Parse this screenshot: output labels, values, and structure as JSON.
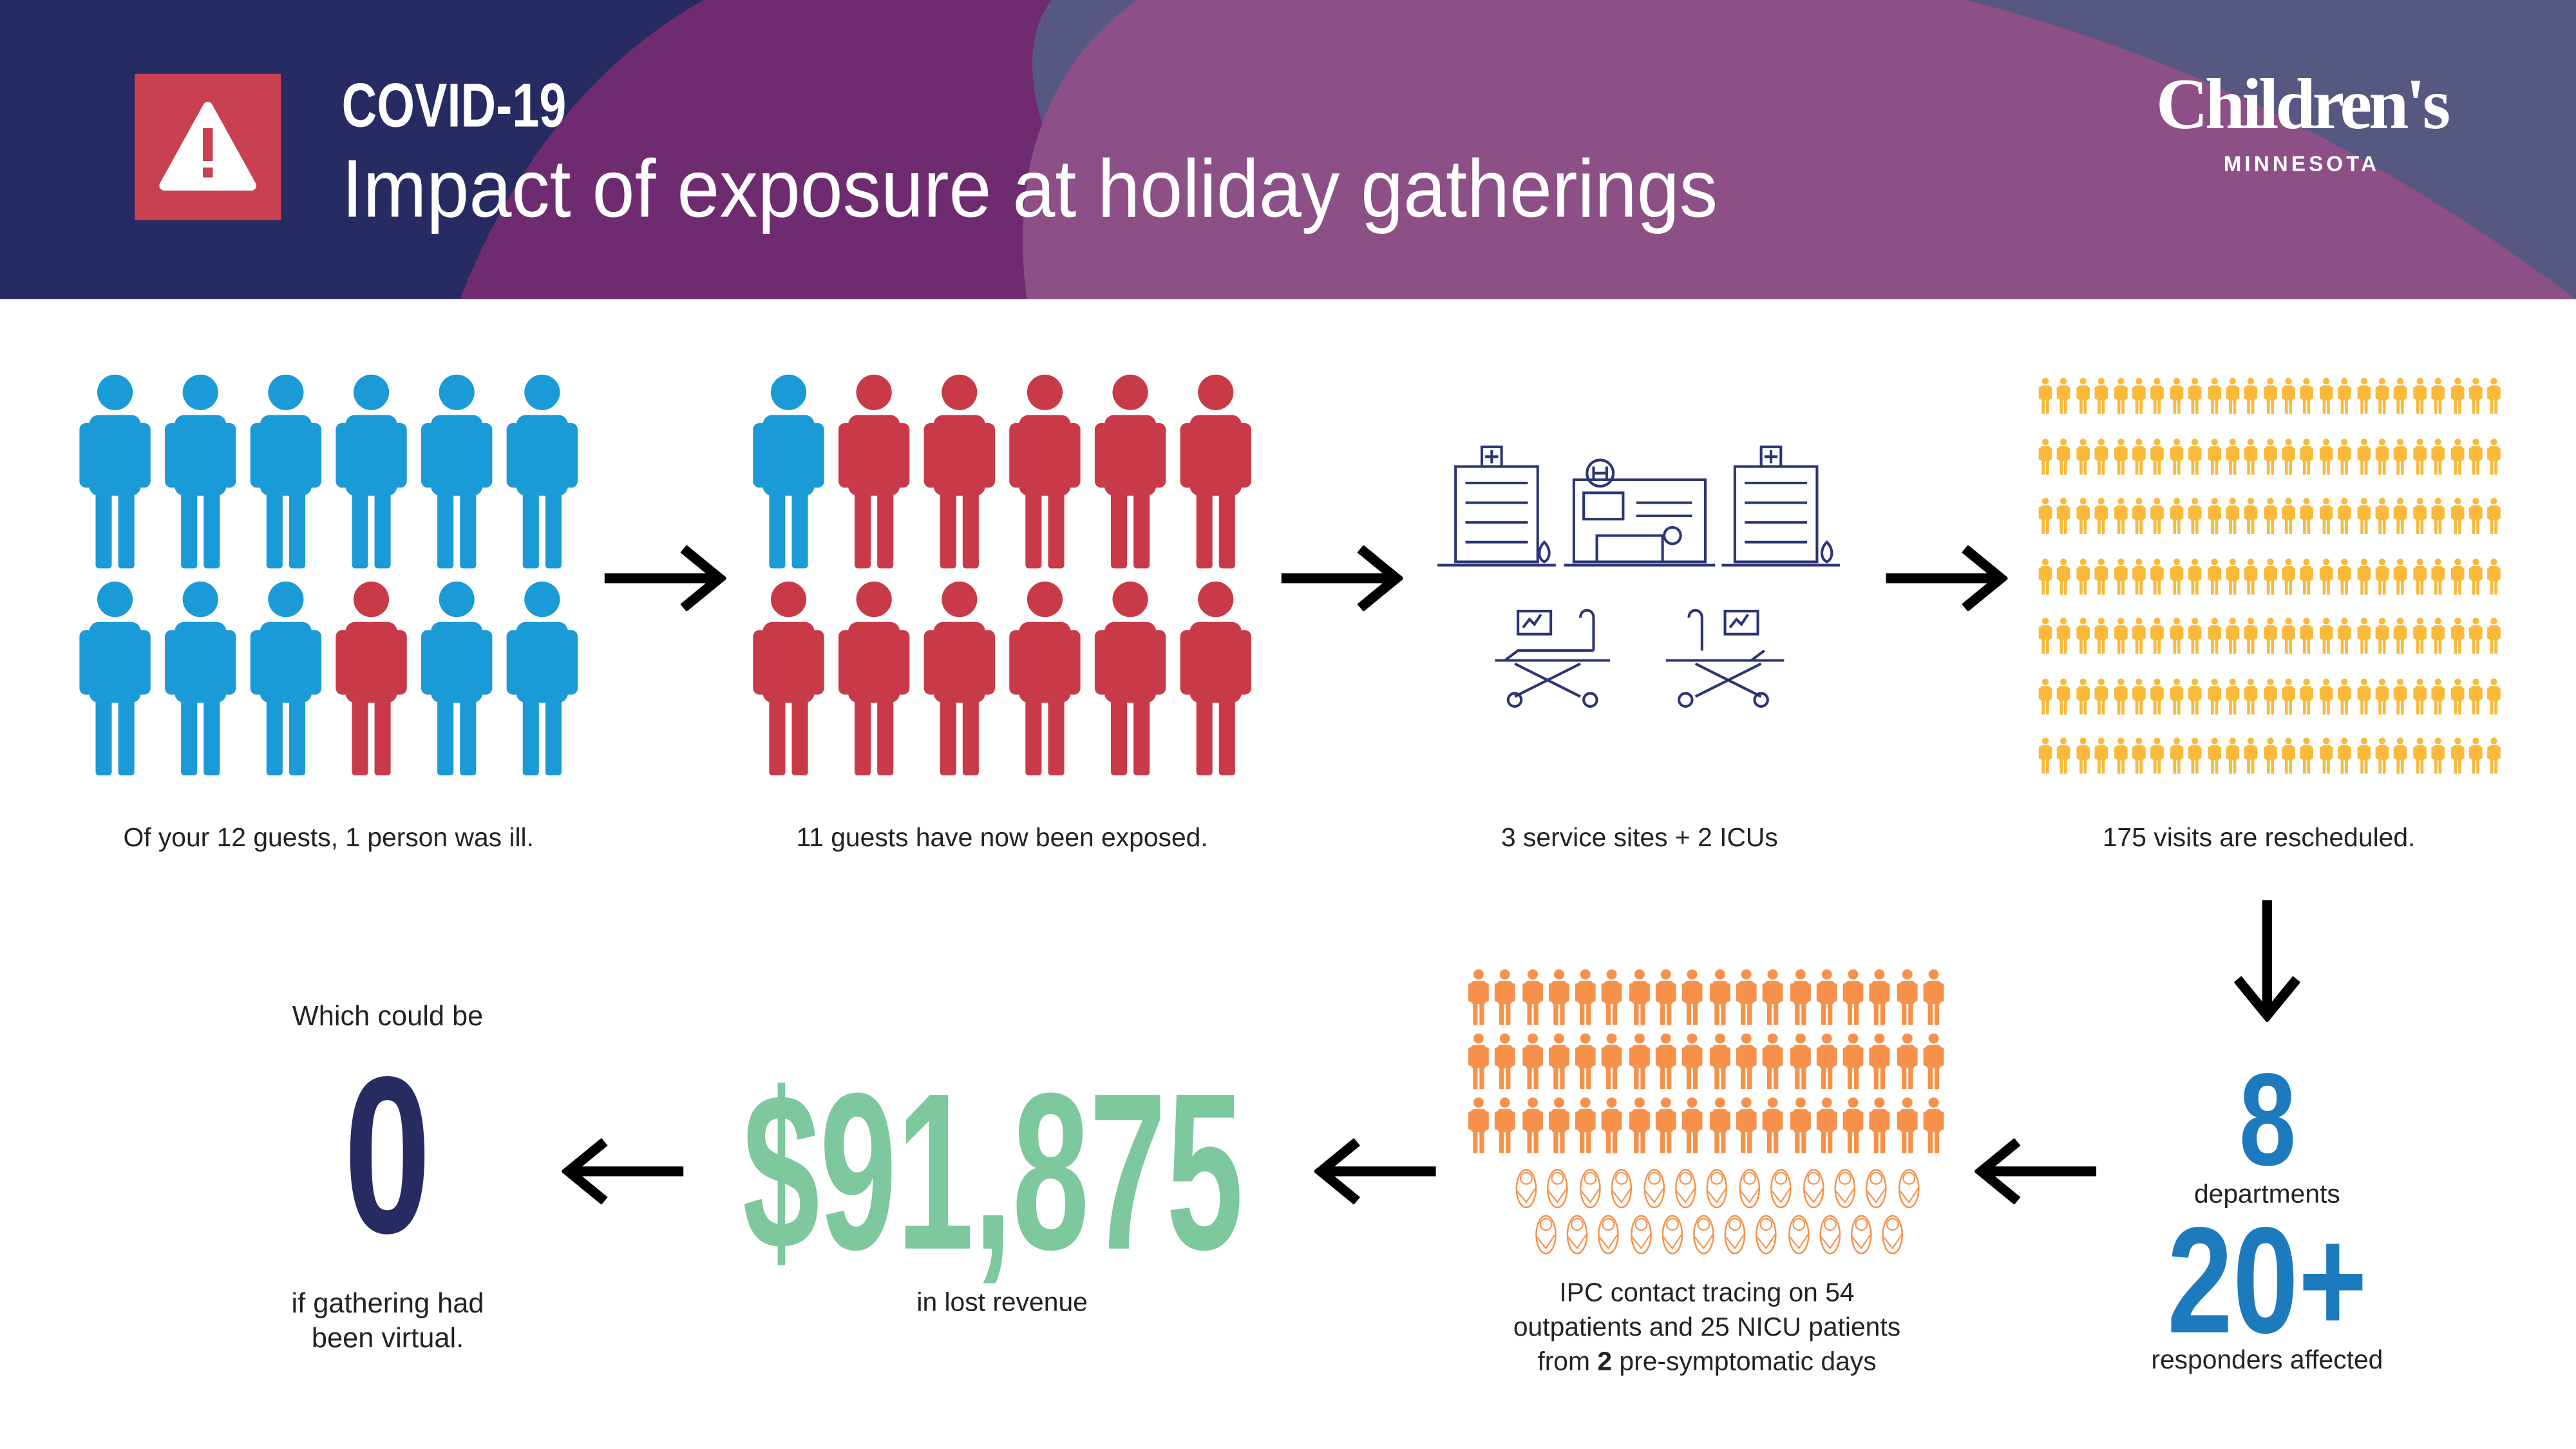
{
  "header": {
    "kicker": "COVID-19",
    "title": "Impact of exposure at holiday gatherings",
    "alert_icon": "warning-triangle-icon",
    "logo": {
      "name": "Children's",
      "sub": "MINNESOTA"
    }
  },
  "colors": {
    "navy": "#262c62",
    "purple": "#6e2b70",
    "mauve": "#8c4f86",
    "slate": "#575882",
    "alert_red": "#c94050",
    "well_blue": "#1a9ad6",
    "ill_red": "#c93a48",
    "visits_yellow": "#fbb93a",
    "patients_orange": "#f7914a",
    "revenue_green": "#7dc89c",
    "stat_blue": "#1d7abd"
  },
  "steps": {
    "guests": {
      "caption": "Of your 12 guests, 1 person was ill.",
      "total": 12,
      "ill_positions": [
        10
      ]
    },
    "exposed": {
      "caption": "11 guests have now been exposed.",
      "total": 12,
      "well_positions": [
        1
      ]
    },
    "sites": {
      "caption": "3 service sites + 2 ICUs",
      "hospitals": 3,
      "icus": 2
    },
    "visits": {
      "caption": "175 visits are rescheduled.",
      "count": 175
    },
    "departments": {
      "value": "8",
      "label": "departments"
    },
    "responders": {
      "value": "20+",
      "label": "responders affected"
    },
    "tracing": {
      "outpatients": 54,
      "nicu": 25,
      "line1": "IPC contact tracing on 54",
      "line2": "outpatients and 25 NICU patients",
      "line3_pre": "from ",
      "line3_bold": "2",
      "line3_post": " pre-symptomatic days"
    },
    "revenue": {
      "value": "$91,875",
      "label": "in lost revenue"
    },
    "virtual": {
      "intro": "Which could be",
      "value": "0",
      "line1": "if gathering had",
      "line2": "been virtual."
    }
  }
}
